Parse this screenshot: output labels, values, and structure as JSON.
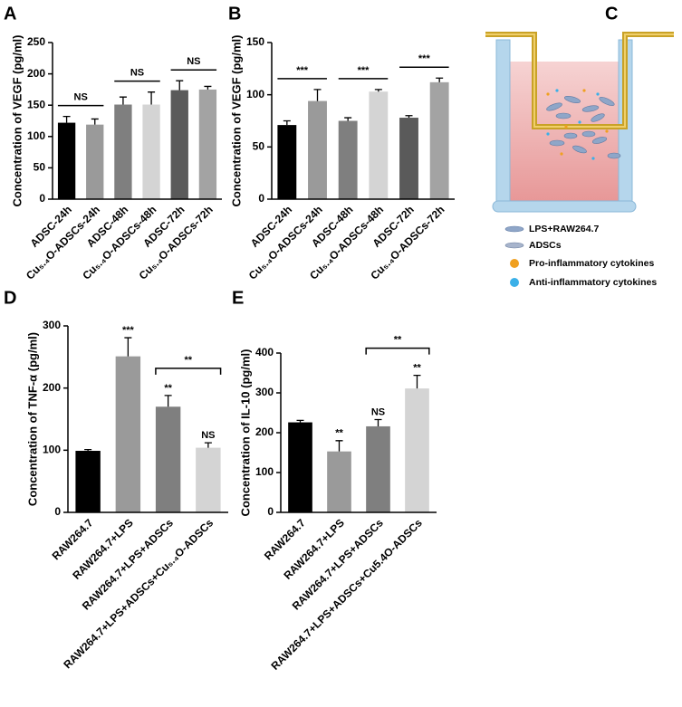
{
  "chart_data": [
    {
      "type": "bar",
      "panel": "A",
      "ylabel": "Concentration of VEGF (pg/ml)",
      "categories": [
        "ADSC-24h",
        "Cu₅.₄O-ADSCs-24h",
        "ADSC-48h",
        "Cu₅.₄O-ADSCs-48h",
        "ADSC-72h",
        "Cu₅.₄O-ADSCs-72h"
      ],
      "values": [
        122,
        119,
        151,
        151,
        174,
        175
      ],
      "errors": [
        10,
        9,
        12,
        20,
        15,
        5
      ],
      "colors": [
        "#000000",
        "#9a9a9a",
        "#7f7f7f",
        "#d4d4d4",
        "#5a5a5a",
        "#a3a3a3"
      ],
      "ylim": [
        0,
        250
      ],
      "yticks": [
        0,
        50,
        100,
        150,
        200,
        250
      ],
      "brackets": [
        {
          "text": "NS",
          "from": 0,
          "to": 1
        },
        {
          "text": "NS",
          "from": 2,
          "to": 3
        },
        {
          "text": "NS",
          "from": 4,
          "to": 5
        }
      ]
    },
    {
      "type": "bar",
      "panel": "B",
      "ylabel": "Concentration of VEGF (pg/ml)",
      "categories": [
        "ADSC-24h",
        "Cu₅.₄O-ADSCs-24h",
        "ADSC-48h",
        "Cu₅.₄O-ADSCs-48h",
        "ADSC-72h",
        "Cu₅.₄O-ADSCs-72h"
      ],
      "values": [
        71,
        94,
        75,
        103,
        78,
        112
      ],
      "errors": [
        4,
        11,
        3,
        2,
        2,
        4
      ],
      "colors": [
        "#000000",
        "#9a9a9a",
        "#7f7f7f",
        "#d4d4d4",
        "#5a5a5a",
        "#a3a3a3"
      ],
      "ylim": [
        0,
        150
      ],
      "yticks": [
        0,
        50,
        100,
        150
      ],
      "brackets": [
        {
          "text": "***",
          "from": 0,
          "to": 1
        },
        {
          "text": "***",
          "from": 2,
          "to": 3
        },
        {
          "text": "***",
          "from": 4,
          "to": 5
        }
      ]
    },
    {
      "type": "bar",
      "panel": "D",
      "ylabel": "Concentration of TNF-α (pg/ml)",
      "categories": [
        "RAW264.7",
        "RAW264.7+LPS",
        "RAW264.7+LPS+ADSCs",
        "RAW264.7+LPS+ADSCs+Cu₅.₄O-ADSCs"
      ],
      "values": [
        99,
        251,
        170,
        104
      ],
      "errors": [
        2,
        30,
        18,
        8
      ],
      "colors": [
        "#000000",
        "#9a9a9a",
        "#7f7f7f",
        "#d4d4d4"
      ],
      "ylim": [
        0,
        300
      ],
      "yticks": [
        0,
        100,
        200,
        300
      ],
      "marks": [
        {
          "text": "***",
          "at": 1
        },
        {
          "text": "**",
          "at": 2
        },
        {
          "text": "NS",
          "at": 3
        }
      ],
      "brackets": [
        {
          "text": "**",
          "from": 2,
          "to": 3
        }
      ]
    },
    {
      "type": "bar",
      "panel": "E",
      "ylabel": "Concentration of IL-10 (pg/ml)",
      "categories": [
        "RAW264.7",
        "RAW264.7+LPS",
        "RAW264.7+LPS+ADSCs",
        "RAW264.7+LPS+ADSCs+Cu5.4O-ADSCs"
      ],
      "values": [
        226,
        153,
        216,
        311
      ],
      "errors": [
        5,
        27,
        17,
        33
      ],
      "colors": [
        "#000000",
        "#9a9a9a",
        "#7f7f7f",
        "#d4d4d4"
      ],
      "ylim": [
        0,
        400
      ],
      "yticks": [
        0,
        100,
        200,
        300,
        400
      ],
      "marks": [
        {
          "text": "**",
          "at": 1
        },
        {
          "text": "NS",
          "at": 2
        },
        {
          "text": "**",
          "at": 3
        }
      ],
      "brackets": [
        {
          "text": "**",
          "from": 2,
          "to": 3
        }
      ]
    }
  ],
  "diagram": {
    "panel": "C",
    "legend": [
      "LPS+RAW264.7",
      "ADSCs",
      "Pro-inflammatory cytokines",
      "Anti-inflammatory cytokines"
    ]
  }
}
